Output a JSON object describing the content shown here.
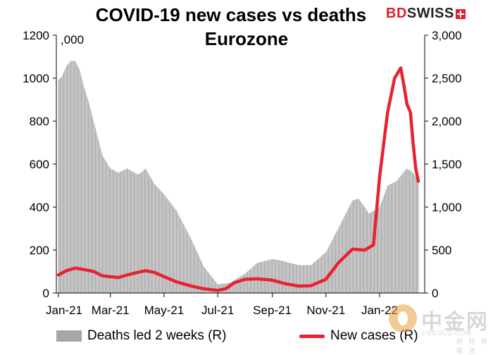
{
  "header": {
    "title_line1": "COVID-19  new cases  vs deaths",
    "title_line2": "Eurozone",
    "logo_bd": "BD",
    "logo_swiss": "SWISS"
  },
  "watermark": {
    "chinese": "中金网",
    "site": "CNGOLD.COM",
    "tagline": "财 经 新 媒 体"
  },
  "chart_data": {
    "type": "bar+line",
    "title": "COVID-19  new cases  vs deaths Eurozone",
    "left_unit": ",000",
    "x_ticks": [
      "Jan-21",
      "Mar-21",
      "May-21",
      "Jul-21",
      "Sep-21",
      "Nov-21",
      "Jan-22"
    ],
    "x_start": "2021-01-01",
    "x_end": "2022-02-14",
    "left_axis": {
      "min": 0,
      "max": 1200,
      "ticks": [
        0,
        200,
        400,
        600,
        800,
        1000,
        1200
      ],
      "tick_labels": [
        "0",
        "200",
        "400",
        "600",
        "800",
        "1000",
        "1200"
      ]
    },
    "right_axis": {
      "min": 0,
      "max": 3000,
      "ticks": [
        0,
        500,
        1000,
        1500,
        2000,
        2500,
        3000
      ],
      "tick_labels": [
        "0",
        "500",
        "1,000",
        "1,500",
        "2,000",
        "2,500",
        "3,000"
      ]
    },
    "grid": false,
    "legend_position": "bottom",
    "series": [
      {
        "name": "Deaths led 2 weeks (R)",
        "kind": "bar",
        "axis": "right",
        "color": "#a6a6a6",
        "points": [
          [
            "2021-01-01",
            2480
          ],
          [
            "2021-01-05",
            2520
          ],
          [
            "2021-01-10",
            2640
          ],
          [
            "2021-01-15",
            2700
          ],
          [
            "2021-01-20",
            2700
          ],
          [
            "2021-01-25",
            2600
          ],
          [
            "2021-01-30",
            2400
          ],
          [
            "2021-02-05",
            2200
          ],
          [
            "2021-02-10",
            2000
          ],
          [
            "2021-02-15",
            1800
          ],
          [
            "2021-02-20",
            1600
          ],
          [
            "2021-03-01",
            1450
          ],
          [
            "2021-03-10",
            1400
          ],
          [
            "2021-03-20",
            1450
          ],
          [
            "2021-04-01",
            1380
          ],
          [
            "2021-04-05",
            1400
          ],
          [
            "2021-04-10",
            1450
          ],
          [
            "2021-04-20",
            1270
          ],
          [
            "2021-05-01",
            1150
          ],
          [
            "2021-05-15",
            960
          ],
          [
            "2021-06-01",
            625
          ],
          [
            "2021-06-15",
            310
          ],
          [
            "2021-07-01",
            100
          ],
          [
            "2021-07-15",
            120
          ],
          [
            "2021-08-01",
            225
          ],
          [
            "2021-08-15",
            350
          ],
          [
            "2021-09-01",
            395
          ],
          [
            "2021-09-10",
            380
          ],
          [
            "2021-10-01",
            325
          ],
          [
            "2021-10-15",
            325
          ],
          [
            "2021-11-01",
            475
          ],
          [
            "2021-11-15",
            750
          ],
          [
            "2021-12-01",
            1075
          ],
          [
            "2021-12-08",
            1100
          ],
          [
            "2021-12-15",
            1000
          ],
          [
            "2021-12-20",
            925
          ],
          [
            "2022-01-01",
            1000
          ],
          [
            "2022-01-10",
            1250
          ],
          [
            "2022-01-20",
            1300
          ],
          [
            "2022-02-01",
            1450
          ],
          [
            "2022-02-08",
            1400
          ],
          [
            "2022-02-14",
            1300
          ]
        ]
      },
      {
        "name": "New cases (R)",
        "kind": "line",
        "axis": "right",
        "color": "#e8232f",
        "points": [
          [
            "2021-01-01",
            210
          ],
          [
            "2021-01-10",
            260
          ],
          [
            "2021-01-20",
            290
          ],
          [
            "2021-02-01",
            270
          ],
          [
            "2021-02-10",
            250
          ],
          [
            "2021-02-20",
            200
          ],
          [
            "2021-03-01",
            190
          ],
          [
            "2021-03-10",
            180
          ],
          [
            "2021-03-20",
            210
          ],
          [
            "2021-04-01",
            240
          ],
          [
            "2021-04-10",
            260
          ],
          [
            "2021-04-20",
            240
          ],
          [
            "2021-05-01",
            190
          ],
          [
            "2021-05-15",
            130
          ],
          [
            "2021-06-01",
            80
          ],
          [
            "2021-06-15",
            50
          ],
          [
            "2021-07-01",
            30
          ],
          [
            "2021-07-10",
            50
          ],
          [
            "2021-07-20",
            120
          ],
          [
            "2021-08-01",
            160
          ],
          [
            "2021-08-15",
            165
          ],
          [
            "2021-09-01",
            150
          ],
          [
            "2021-09-15",
            110
          ],
          [
            "2021-10-01",
            80
          ],
          [
            "2021-10-15",
            85
          ],
          [
            "2021-11-01",
            160
          ],
          [
            "2021-11-15",
            350
          ],
          [
            "2021-12-01",
            510
          ],
          [
            "2021-12-15",
            500
          ],
          [
            "2021-12-25",
            560
          ],
          [
            "2022-01-01",
            1350
          ],
          [
            "2022-01-10",
            2100
          ],
          [
            "2022-01-18",
            2500
          ],
          [
            "2022-01-25",
            2620
          ],
          [
            "2022-01-28",
            2450
          ],
          [
            "2022-02-01",
            2200
          ],
          [
            "2022-02-05",
            2100
          ],
          [
            "2022-02-08",
            1750
          ],
          [
            "2022-02-11",
            1450
          ],
          [
            "2022-02-14",
            1300
          ]
        ]
      }
    ]
  }
}
